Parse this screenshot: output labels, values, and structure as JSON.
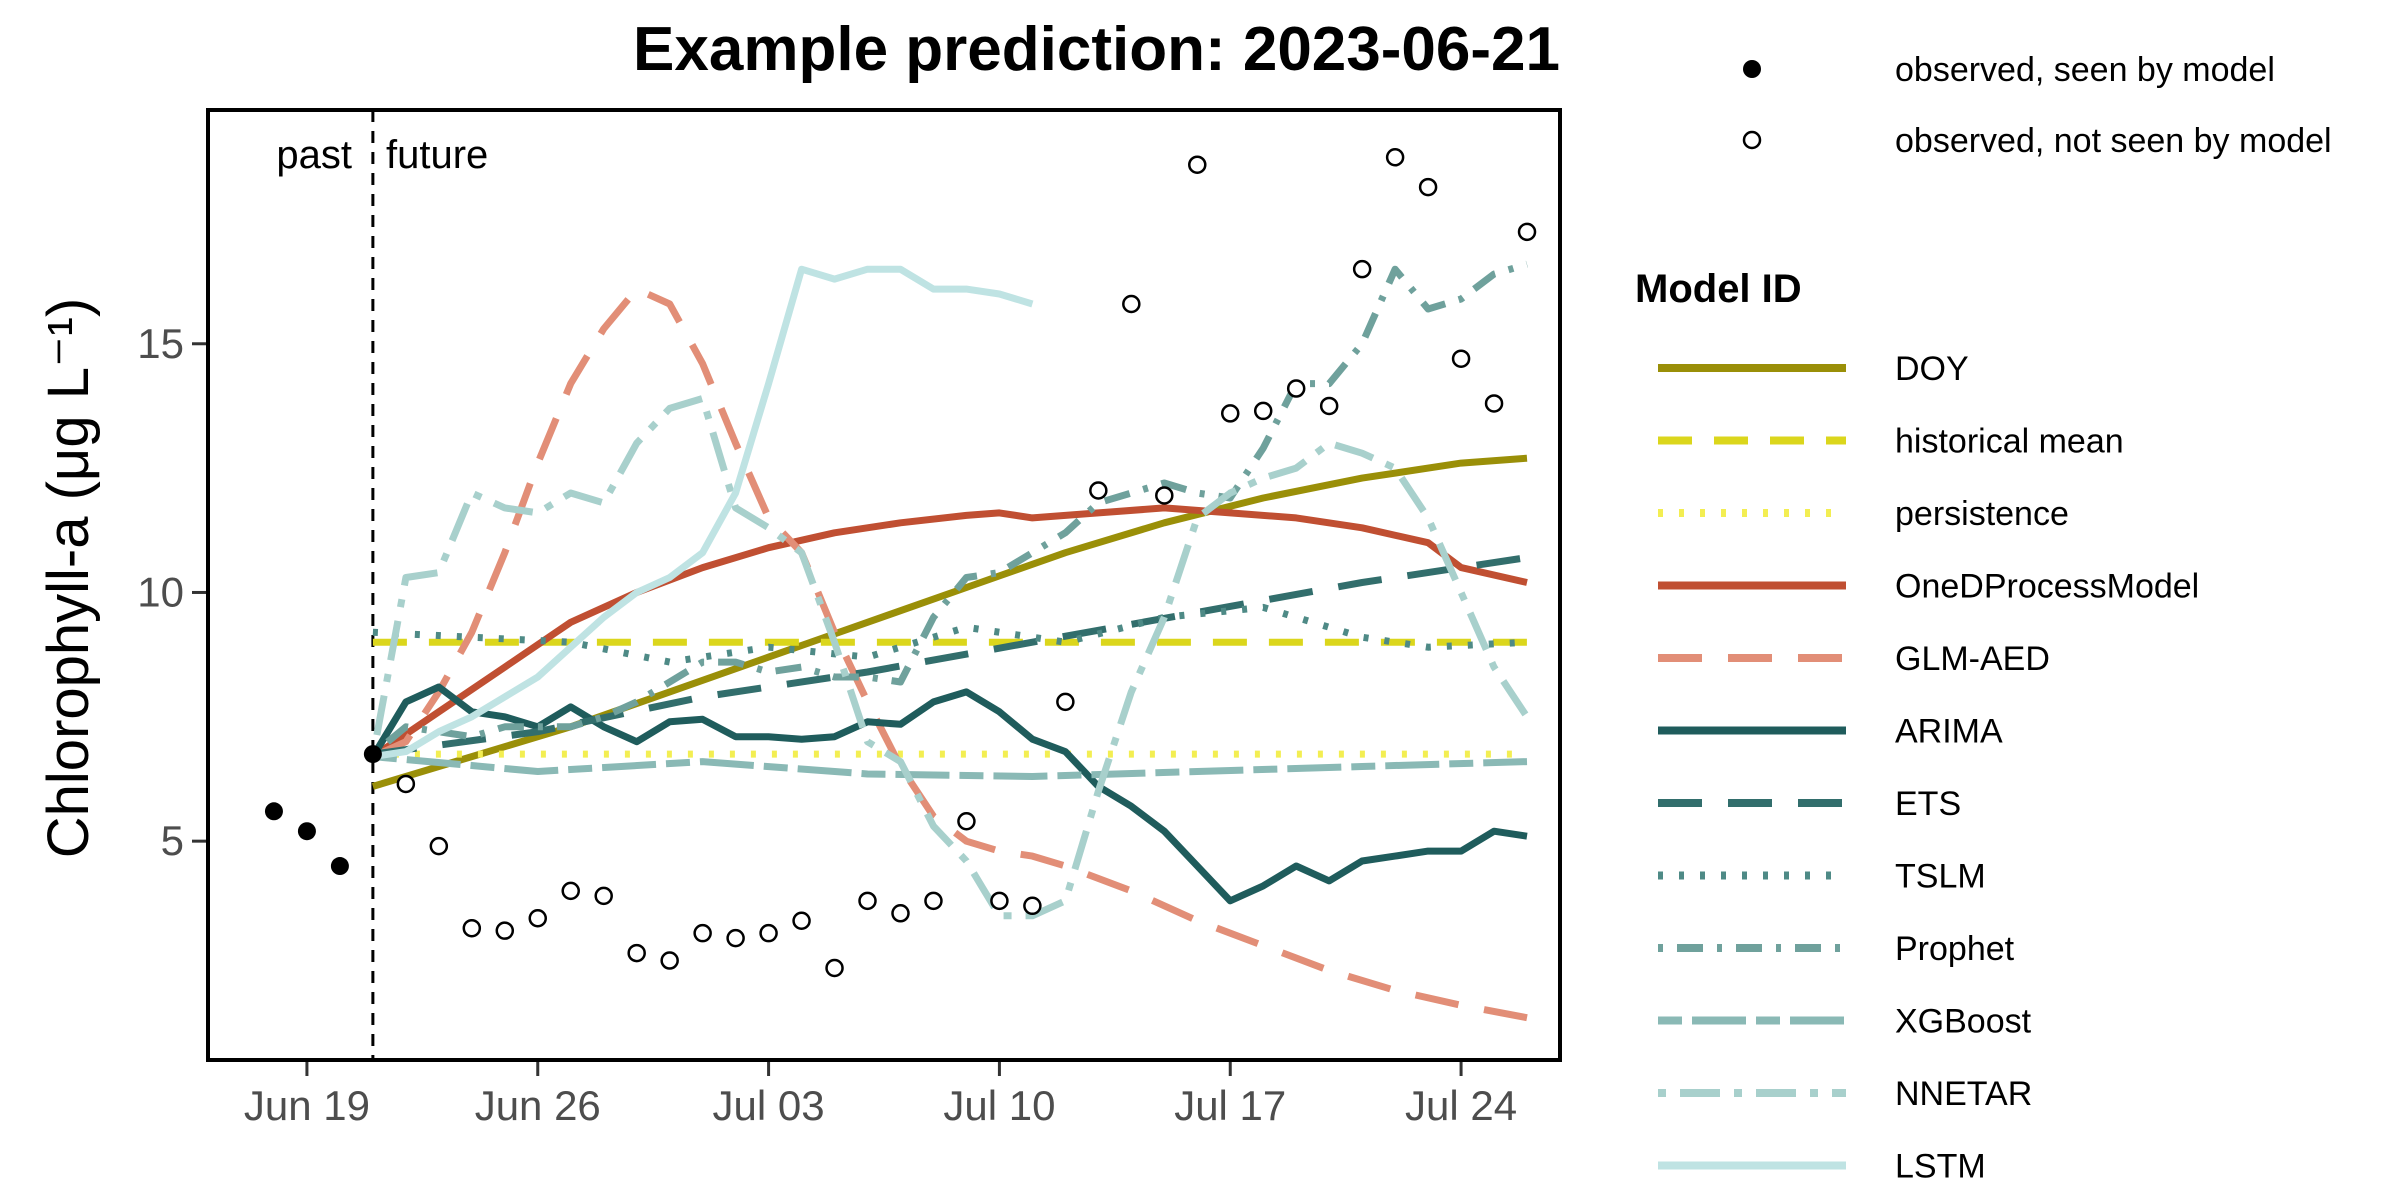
{
  "chart_data": {
    "type": "line",
    "title": "Example prediction: 2023-06-21",
    "ylabel": "Chlorophyll-a (μg L⁻¹)",
    "xlabel": "",
    "x_start_date": "2023-06-16",
    "xlim": [
      0,
      41
    ],
    "ylim": [
      0.6,
      19.7
    ],
    "x_ticks": [
      {
        "x": 3,
        "label": "Jun 19"
      },
      {
        "x": 10,
        "label": "Jun 26"
      },
      {
        "x": 17,
        "label": "Jul 03"
      },
      {
        "x": 24,
        "label": "Jul 10"
      },
      {
        "x": 31,
        "label": "Jul 17"
      },
      {
        "x": 38,
        "label": "Jul 24"
      }
    ],
    "y_ticks": [
      5,
      10,
      15
    ],
    "forecast_line_x": 5,
    "annotations": {
      "past": "past",
      "future": "future"
    },
    "observed_seen": {
      "name": "observed, seen by model",
      "points": [
        [
          2,
          5.6
        ],
        [
          3,
          5.2
        ],
        [
          4,
          4.5
        ],
        [
          5,
          6.75
        ]
      ]
    },
    "observed_unseen": {
      "name": "observed, not seen by model",
      "points": [
        [
          6,
          6.15
        ],
        [
          7,
          4.9
        ],
        [
          8,
          3.25
        ],
        [
          9,
          3.2
        ],
        [
          10,
          3.45
        ],
        [
          11,
          4.0
        ],
        [
          12,
          3.9
        ],
        [
          13,
          2.75
        ],
        [
          14,
          2.6
        ],
        [
          15,
          3.15
        ],
        [
          16,
          3.05
        ],
        [
          17,
          3.15
        ],
        [
          18,
          3.4
        ],
        [
          19,
          2.45
        ],
        [
          20,
          3.8
        ],
        [
          21,
          3.55
        ],
        [
          22,
          3.8
        ],
        [
          23,
          5.4
        ],
        [
          24,
          3.8
        ],
        [
          25,
          3.7
        ],
        [
          26,
          7.8
        ],
        [
          27,
          12.05
        ],
        [
          28,
          15.8
        ],
        [
          29,
          11.95
        ],
        [
          30,
          18.6
        ],
        [
          31,
          13.6
        ],
        [
          32,
          13.65
        ],
        [
          33,
          14.1
        ],
        [
          34,
          13.75
        ],
        [
          35,
          16.5
        ],
        [
          36,
          18.75
        ],
        [
          37,
          18.15
        ],
        [
          38,
          14.7
        ],
        [
          39,
          13.8
        ],
        [
          40,
          17.25
        ]
      ]
    },
    "legend_title": "Model ID",
    "series": [
      {
        "name": "DOY",
        "color": "#9a8f08",
        "dash": "solid",
        "x": [
          5,
          8,
          11,
          14,
          17,
          20,
          23,
          26,
          29,
          32,
          35,
          38,
          40
        ],
        "y": [
          6.1,
          6.7,
          7.3,
          8.0,
          8.7,
          9.4,
          10.1,
          10.8,
          11.4,
          11.9,
          12.3,
          12.6,
          12.7
        ]
      },
      {
        "name": "historical mean",
        "color": "#dbd61c",
        "dash": "dashed",
        "x": [
          5,
          40
        ],
        "y": [
          9.0,
          9.0
        ]
      },
      {
        "name": "persistence",
        "color": "#f3ee52",
        "dash": "dotted",
        "x": [
          5,
          40
        ],
        "y": [
          6.75,
          6.75
        ]
      },
      {
        "name": "OneDProcessModel",
        "color": "#c04f32",
        "dash": "solid",
        "x": [
          5,
          7,
          9,
          11,
          13,
          15,
          17,
          19,
          21,
          23,
          24,
          25,
          27,
          29,
          31,
          33,
          35,
          37,
          38,
          40
        ],
        "y": [
          6.7,
          7.6,
          8.5,
          9.4,
          10.0,
          10.5,
          10.9,
          11.2,
          11.4,
          11.55,
          11.6,
          11.5,
          11.6,
          11.7,
          11.6,
          11.5,
          11.3,
          11.0,
          10.5,
          10.2
        ]
      },
      {
        "name": "GLM-AED",
        "color": "#e28e77",
        "dash": "longdash",
        "x": [
          5,
          6,
          7,
          8,
          9,
          10,
          11,
          12,
          13,
          14,
          15,
          16,
          17,
          18,
          19,
          20,
          21,
          22,
          23,
          24,
          25,
          26,
          28,
          30,
          32,
          34,
          36,
          38,
          40
        ],
        "y": [
          6.7,
          7.0,
          8.0,
          9.2,
          10.8,
          12.6,
          14.2,
          15.3,
          16.1,
          15.8,
          14.6,
          13.0,
          11.5,
          10.8,
          9.2,
          7.8,
          6.5,
          5.5,
          5.0,
          4.8,
          4.7,
          4.5,
          4.0,
          3.4,
          2.9,
          2.4,
          2.0,
          1.7,
          1.45
        ]
      },
      {
        "name": "ARIMA",
        "color": "#1f5c5c",
        "dash": "solid",
        "x": [
          5,
          6,
          7,
          8,
          9,
          10,
          11,
          12,
          13,
          14,
          15,
          16,
          17,
          18,
          19,
          20,
          21,
          22,
          23,
          24,
          25,
          26,
          27,
          28,
          29,
          30,
          31,
          32,
          33,
          34,
          35,
          36,
          37,
          38,
          39,
          40
        ],
        "y": [
          6.7,
          7.8,
          8.1,
          7.6,
          7.5,
          7.3,
          7.7,
          7.3,
          7.0,
          7.4,
          7.45,
          7.1,
          7.1,
          7.05,
          7.1,
          7.4,
          7.35,
          7.8,
          8.0,
          7.6,
          7.05,
          6.8,
          6.1,
          5.7,
          5.2,
          4.5,
          3.8,
          4.1,
          4.5,
          4.2,
          4.6,
          4.7,
          4.8,
          4.8,
          5.2,
          5.1
        ]
      },
      {
        "name": "ETS",
        "color": "#326e6c",
        "dash": "longdash",
        "x": [
          5,
          10,
          15,
          20,
          25,
          30,
          35,
          40
        ],
        "y": [
          6.75,
          7.2,
          7.9,
          8.4,
          9.0,
          9.6,
          10.2,
          10.7
        ]
      },
      {
        "name": "TSLM",
        "color": "#4e8a86",
        "dash": "dotted",
        "x": [
          5,
          8,
          11,
          14,
          17,
          20,
          23,
          26,
          29,
          32,
          35,
          37,
          40
        ],
        "y": [
          9.2,
          9.1,
          9.0,
          8.6,
          8.9,
          8.7,
          9.3,
          9.0,
          9.5,
          9.7,
          9.1,
          8.9,
          9.0
        ]
      },
      {
        "name": "Prophet",
        "color": "#6fa19c",
        "dash": "dotdash",
        "x": [
          5,
          6,
          7,
          8,
          9,
          10,
          11,
          12,
          13,
          14,
          15,
          16,
          17,
          18,
          19,
          20,
          21,
          22,
          23,
          24,
          25,
          26,
          27,
          28,
          29,
          30,
          31,
          32,
          33,
          34,
          35,
          36,
          37,
          38,
          39,
          40
        ],
        "y": [
          6.75,
          7.3,
          7.2,
          7.1,
          7.3,
          7.3,
          7.3,
          7.5,
          7.8,
          8.2,
          8.6,
          8.6,
          8.4,
          8.5,
          8.3,
          8.3,
          8.2,
          9.5,
          10.3,
          10.4,
          10.8,
          11.2,
          11.8,
          12.0,
          12.2,
          12.0,
          11.9,
          12.9,
          14.2,
          14.2,
          15.0,
          16.5,
          15.7,
          15.9,
          16.4,
          16.6
        ]
      },
      {
        "name": "XGBoost",
        "color": "#8ab9b5",
        "dash": "twodash",
        "x": [
          5,
          10,
          15,
          20,
          25,
          30,
          35,
          40
        ],
        "y": [
          6.7,
          6.4,
          6.6,
          6.35,
          6.3,
          6.4,
          6.5,
          6.6
        ]
      },
      {
        "name": "NNETAR",
        "color": "#a8d0cc",
        "dash": "dotdash-long",
        "x": [
          5,
          6,
          7,
          8,
          9,
          10,
          11,
          12,
          13,
          14,
          15,
          16,
          17,
          18,
          19,
          20,
          21,
          22,
          23,
          24,
          25,
          26,
          27,
          28,
          29,
          30,
          31,
          32,
          33,
          34,
          35,
          36,
          37,
          38,
          39,
          40
        ],
        "y": [
          6.7,
          10.3,
          10.4,
          12.0,
          11.7,
          11.6,
          12.0,
          11.8,
          13.0,
          13.7,
          13.9,
          11.7,
          11.3,
          10.8,
          9.0,
          7.0,
          6.6,
          5.3,
          4.6,
          3.5,
          3.5,
          3.8,
          6.0,
          8.0,
          9.5,
          11.5,
          12.0,
          12.3,
          12.5,
          13.0,
          12.8,
          12.5,
          11.5,
          10.0,
          8.5,
          7.5
        ]
      },
      {
        "name": "LSTM",
        "color": "#bfe3e3",
        "dash": "solid",
        "x": [
          5,
          6,
          7,
          8,
          9,
          10,
          11,
          12,
          13,
          14,
          15,
          16,
          17,
          18,
          19,
          20,
          21,
          22,
          23,
          24,
          25
        ],
        "y": [
          6.7,
          6.8,
          7.2,
          7.5,
          7.9,
          8.3,
          8.9,
          9.5,
          10.0,
          10.3,
          10.8,
          12.0,
          14.2,
          16.5,
          16.3,
          16.5,
          16.5,
          16.1,
          16.1,
          16.0,
          15.8
        ]
      }
    ]
  }
}
